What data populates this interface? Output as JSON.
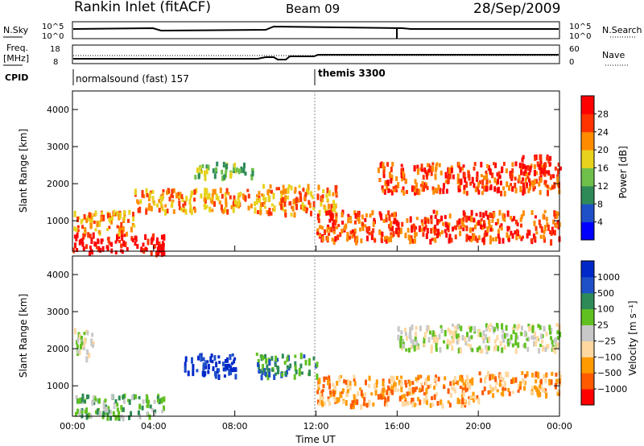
{
  "header": {
    "station": "Rankin Inlet (fitACF)",
    "beam": "Beam 09",
    "date": "28/Sep/2009"
  },
  "left_labels": {
    "nsky": "N.Sky",
    "freq_line1": "Freq.",
    "freq_line2": "[MHz]",
    "cpid": "CPID"
  },
  "right_labels": {
    "nsearch": "N.Search",
    "nave": "Nave"
  },
  "mini_ticks": {
    "nsky_left": [
      "10^5",
      "10^0"
    ],
    "nsearch_right": [
      "10^5",
      "10^0"
    ],
    "freq_left": [
      "18",
      "8"
    ],
    "nave_right": [
      "60",
      "0"
    ]
  },
  "cpid_labels": [
    "normalsound (fast) 157",
    "themis 3300"
  ],
  "colors": {
    "power": [
      "#0000ff",
      "#2050c8",
      "#2e8b57",
      "#6fc04a",
      "#e8d21e",
      "#ff8c00",
      "#ff3300",
      "#ff0000"
    ],
    "velocity": [
      "#ff0000",
      "#ff5a00",
      "#ff9a00",
      "#ffd8a0",
      "#c8c8c8",
      "#60c020",
      "#2e8b57",
      "#2050c8",
      "#0028c8"
    ]
  },
  "chart_data": [
    {
      "type": "heatmap",
      "title": "",
      "xlabel": "Time UT",
      "ylabel": "Slant Range [km]",
      "x_ticks": [
        "00:00",
        "04:00",
        "08:00",
        "12:00",
        "16:00",
        "20:00",
        "00:00"
      ],
      "y_ticks": [
        "1000",
        "2000",
        "3000",
        "4000"
      ],
      "xlim_hours": [
        0,
        24
      ],
      "ylim_km": [
        180,
        4500
      ],
      "colorbar": {
        "label": "Power [dB]",
        "ticks": [
          "4",
          "8",
          "12",
          "16",
          "20",
          "24",
          "28"
        ]
      },
      "echo_regions": [
        {
          "t": [
            0,
            4.5
          ],
          "r": [
            180,
            700
          ],
          "level": 7
        },
        {
          "t": [
            0,
            3
          ],
          "r": [
            700,
            1300
          ],
          "level": 5
        },
        {
          "t": [
            3,
            9
          ],
          "r": [
            1300,
            1900
          ],
          "level": 5
        },
        {
          "t": [
            6,
            9
          ],
          "r": [
            2200,
            2600
          ],
          "level": 3
        },
        {
          "t": [
            9,
            13
          ],
          "r": [
            1200,
            2000
          ],
          "level": 5
        },
        {
          "t": [
            12,
            24
          ],
          "r": [
            500,
            1300
          ],
          "level": 6
        },
        {
          "t": [
            15,
            24
          ],
          "r": [
            1800,
            2600
          ],
          "level": 6
        },
        {
          "t": [
            22,
            23.5
          ],
          "r": [
            2300,
            2800
          ],
          "level": 7
        }
      ]
    },
    {
      "type": "heatmap",
      "title": "",
      "xlabel": "Time UT",
      "ylabel": "Slant Range [km]",
      "x_ticks": [
        "00:00",
        "04:00",
        "08:00",
        "12:00",
        "16:00",
        "20:00",
        "00:00"
      ],
      "y_ticks": [
        "1000",
        "2000",
        "3000",
        "4000"
      ],
      "xlim_hours": [
        0,
        24
      ],
      "ylim_km": [
        180,
        4500
      ],
      "colorbar": {
        "label": "Velocity [m s⁻¹]",
        "ticks": [
          "1000",
          "500",
          "100",
          "25",
          "−25",
          "−100",
          "−500",
          "−1000"
        ]
      },
      "echo_regions": [
        {
          "t": [
            0,
            4.5
          ],
          "r": [
            180,
            800
          ],
          "level": 5
        },
        {
          "t": [
            0,
            1
          ],
          "r": [
            1800,
            2600
          ],
          "level": 4
        },
        {
          "t": [
            5.5,
            8
          ],
          "r": [
            1300,
            1900
          ],
          "level": 8
        },
        {
          "t": [
            9,
            12
          ],
          "r": [
            1300,
            1900
          ],
          "level": 6
        },
        {
          "t": [
            12,
            20
          ],
          "r": [
            500,
            1300
          ],
          "level": 2
        },
        {
          "t": [
            20,
            24
          ],
          "r": [
            800,
            1400
          ],
          "level": 2
        },
        {
          "t": [
            16,
            24
          ],
          "r": [
            2000,
            2700
          ],
          "level": 4
        }
      ]
    }
  ]
}
